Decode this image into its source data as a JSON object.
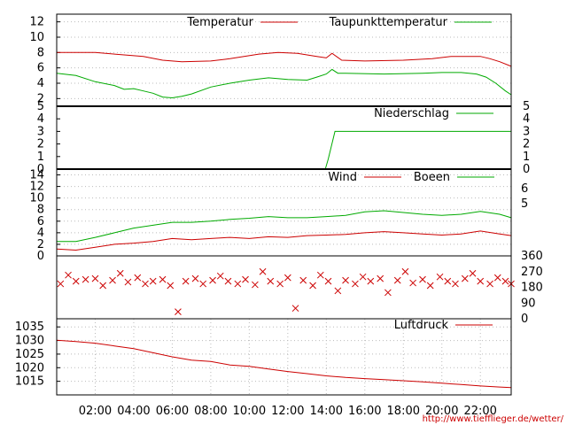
{
  "chart_data": [
    {
      "panel": "temperature",
      "type": "line",
      "x_unit": "hours",
      "ylim": [
        1,
        13
      ],
      "yticks": [
        2,
        4,
        6,
        8,
        10,
        12
      ],
      "grid": true,
      "series": [
        {
          "name": "Temperatur",
          "color": "#cc0000",
          "points": [
            [
              0,
              8.0
            ],
            [
              2,
              8.0
            ],
            [
              3,
              7.8
            ],
            [
              4.5,
              7.5
            ],
            [
              5.5,
              7.0
            ],
            [
              6.5,
              6.8
            ],
            [
              8,
              6.9
            ],
            [
              9,
              7.2
            ],
            [
              10.5,
              7.8
            ],
            [
              11.5,
              8.0
            ],
            [
              12.5,
              7.9
            ],
            [
              13.5,
              7.5
            ],
            [
              14,
              7.3
            ],
            [
              14.3,
              7.9
            ],
            [
              14.8,
              7.0
            ],
            [
              16,
              6.9
            ],
            [
              18,
              7.0
            ],
            [
              19.5,
              7.2
            ],
            [
              20.5,
              7.5
            ],
            [
              21.5,
              7.5
            ],
            [
              22,
              7.5
            ],
            [
              22.5,
              7.2
            ],
            [
              23,
              6.8
            ],
            [
              23.6,
              6.2
            ]
          ]
        },
        {
          "name": "Taupunkttemperatur",
          "color": "#00aa00",
          "points": [
            [
              0,
              5.3
            ],
            [
              1,
              5.0
            ],
            [
              2,
              4.2
            ],
            [
              3,
              3.7
            ],
            [
              3.5,
              3.2
            ],
            [
              4,
              3.3
            ],
            [
              4.5,
              3.0
            ],
            [
              5,
              2.7
            ],
            [
              5.5,
              2.2
            ],
            [
              6,
              2.1
            ],
            [
              6.5,
              2.3
            ],
            [
              7,
              2.6
            ],
            [
              8,
              3.5
            ],
            [
              9,
              4.0
            ],
            [
              10,
              4.4
            ],
            [
              11,
              4.7
            ],
            [
              12,
              4.5
            ],
            [
              13,
              4.4
            ],
            [
              13.5,
              4.8
            ],
            [
              14,
              5.2
            ],
            [
              14.3,
              5.8
            ],
            [
              14.6,
              5.3
            ],
            [
              15,
              5.3
            ],
            [
              17,
              5.2
            ],
            [
              19,
              5.3
            ],
            [
              20,
              5.4
            ],
            [
              21,
              5.4
            ],
            [
              21.8,
              5.2
            ],
            [
              22.3,
              4.8
            ],
            [
              22.8,
              4.0
            ],
            [
              23.3,
              3.0
            ],
            [
              23.6,
              2.5
            ]
          ]
        }
      ]
    },
    {
      "panel": "precipitation",
      "type": "line",
      "x_unit": "hours",
      "ylim": [
        0,
        5
      ],
      "yticks": [
        0,
        1,
        2,
        3,
        4,
        5
      ],
      "grid": false,
      "series": [
        {
          "name": "Niederschlag",
          "color": "#00aa00",
          "points": [
            [
              0,
              0
            ],
            [
              13.95,
              0
            ],
            [
              14.1,
              0.8
            ],
            [
              14.45,
              3.0
            ],
            [
              23.6,
              3.0
            ]
          ]
        }
      ]
    },
    {
      "panel": "wind",
      "type": "line",
      "x_unit": "hours",
      "ylim": [
        0,
        15
      ],
      "yticks": [
        0,
        2,
        4,
        6,
        8,
        10,
        12,
        14
      ],
      "yticks_right": [
        "5",
        "6"
      ],
      "grid": true,
      "series": [
        {
          "name": "Wind",
          "color": "#cc0000",
          "points": [
            [
              0,
              1.2
            ],
            [
              1,
              1.0
            ],
            [
              2,
              1.5
            ],
            [
              3,
              2.0
            ],
            [
              4,
              2.2
            ],
            [
              5,
              2.5
            ],
            [
              6,
              3.0
            ],
            [
              7,
              2.8
            ],
            [
              8,
              3.0
            ],
            [
              9,
              3.2
            ],
            [
              10,
              3.0
            ],
            [
              11,
              3.3
            ],
            [
              12,
              3.2
            ],
            [
              13,
              3.5
            ],
            [
              14,
              3.6
            ],
            [
              15,
              3.7
            ],
            [
              16,
              4.0
            ],
            [
              17,
              4.2
            ],
            [
              18,
              4.0
            ],
            [
              19,
              3.8
            ],
            [
              20,
              3.6
            ],
            [
              21,
              3.8
            ],
            [
              22,
              4.3
            ],
            [
              23,
              3.8
            ],
            [
              23.6,
              3.5
            ]
          ]
        },
        {
          "name": "Boeen",
          "color": "#00aa00",
          "points": [
            [
              0,
              2.5
            ],
            [
              1,
              2.5
            ],
            [
              2,
              3.2
            ],
            [
              3,
              4.0
            ],
            [
              4,
              4.8
            ],
            [
              5,
              5.3
            ],
            [
              6,
              5.8
            ],
            [
              7,
              5.8
            ],
            [
              8,
              6.0
            ],
            [
              9,
              6.3
            ],
            [
              10,
              6.5
            ],
            [
              11,
              6.8
            ],
            [
              12,
              6.6
            ],
            [
              13,
              6.6
            ],
            [
              14,
              6.8
            ],
            [
              15,
              7.0
            ],
            [
              16,
              7.6
            ],
            [
              17,
              7.8
            ],
            [
              18,
              7.5
            ],
            [
              19,
              7.2
            ],
            [
              20,
              7.0
            ],
            [
              21,
              7.2
            ],
            [
              22,
              7.7
            ],
            [
              23,
              7.2
            ],
            [
              23.6,
              6.6
            ]
          ]
        }
      ]
    },
    {
      "panel": "wind_direction",
      "type": "scatter",
      "x_unit": "hours",
      "ylim": [
        0,
        360
      ],
      "yticks_right": [
        0,
        90,
        180,
        270,
        360
      ],
      "series": [
        {
          "marker": "x",
          "color": "#cc0000",
          "points": [
            [
              0.2,
              200
            ],
            [
              0.6,
              250
            ],
            [
              1.0,
              215
            ],
            [
              1.5,
              225
            ],
            [
              2.0,
              230
            ],
            [
              2.4,
              190
            ],
            [
              2.9,
              220
            ],
            [
              3.3,
              260
            ],
            [
              3.7,
              210
            ],
            [
              4.2,
              235
            ],
            [
              4.6,
              200
            ],
            [
              5.0,
              215
            ],
            [
              5.5,
              225
            ],
            [
              5.9,
              190
            ],
            [
              6.3,
              40
            ],
            [
              6.7,
              215
            ],
            [
              7.2,
              230
            ],
            [
              7.6,
              200
            ],
            [
              8.1,
              220
            ],
            [
              8.5,
              245
            ],
            [
              8.9,
              215
            ],
            [
              9.4,
              200
            ],
            [
              9.8,
              225
            ],
            [
              10.3,
              195
            ],
            [
              10.7,
              270
            ],
            [
              11.1,
              215
            ],
            [
              11.6,
              200
            ],
            [
              12.0,
              235
            ],
            [
              12.4,
              60
            ],
            [
              12.8,
              220
            ],
            [
              13.3,
              190
            ],
            [
              13.7,
              250
            ],
            [
              14.1,
              215
            ],
            [
              14.6,
              160
            ],
            [
              15.0,
              220
            ],
            [
              15.5,
              200
            ],
            [
              15.9,
              240
            ],
            [
              16.3,
              215
            ],
            [
              16.8,
              230
            ],
            [
              17.2,
              150
            ],
            [
              17.7,
              220
            ],
            [
              18.1,
              270
            ],
            [
              18.5,
              205
            ],
            [
              19.0,
              225
            ],
            [
              19.4,
              190
            ],
            [
              19.9,
              240
            ],
            [
              20.3,
              215
            ],
            [
              20.7,
              200
            ],
            [
              21.2,
              230
            ],
            [
              21.6,
              260
            ],
            [
              22.0,
              215
            ],
            [
              22.5,
              200
            ],
            [
              22.9,
              235
            ],
            [
              23.3,
              215
            ],
            [
              23.6,
              200
            ]
          ]
        }
      ]
    },
    {
      "panel": "pressure",
      "type": "line",
      "x_unit": "hours",
      "ylim": [
        1010,
        1038
      ],
      "yticks": [
        1015,
        1020,
        1025,
        1030,
        1035
      ],
      "xticks": [
        "02:00",
        "04:00",
        "06:00",
        "08:00",
        "10:00",
        "12:00",
        "14:00",
        "16:00",
        "18:00",
        "20:00",
        "22:00"
      ],
      "grid": true,
      "series": [
        {
          "name": "Luftdruck",
          "color": "#cc0000",
          "points": [
            [
              0,
              1030.1
            ],
            [
              1,
              1029.6
            ],
            [
              2,
              1029.0
            ],
            [
              3,
              1028.0
            ],
            [
              4,
              1027.0
            ],
            [
              5,
              1025.5
            ],
            [
              6,
              1024.0
            ],
            [
              7,
              1022.8
            ],
            [
              8,
              1022.3
            ],
            [
              9,
              1021.0
            ],
            [
              10,
              1020.5
            ],
            [
              11,
              1019.5
            ],
            [
              12,
              1018.6
            ],
            [
              13,
              1017.8
            ],
            [
              14,
              1017.0
            ],
            [
              15,
              1016.4
            ],
            [
              16,
              1016.0
            ],
            [
              17,
              1015.6
            ],
            [
              18,
              1015.2
            ],
            [
              19,
              1014.8
            ],
            [
              20,
              1014.3
            ],
            [
              21,
              1013.8
            ],
            [
              22,
              1013.3
            ],
            [
              23,
              1012.9
            ],
            [
              23.6,
              1012.7
            ]
          ]
        }
      ]
    }
  ],
  "footer": {
    "url": "http://www.tiefflieger.de/wetter/"
  }
}
